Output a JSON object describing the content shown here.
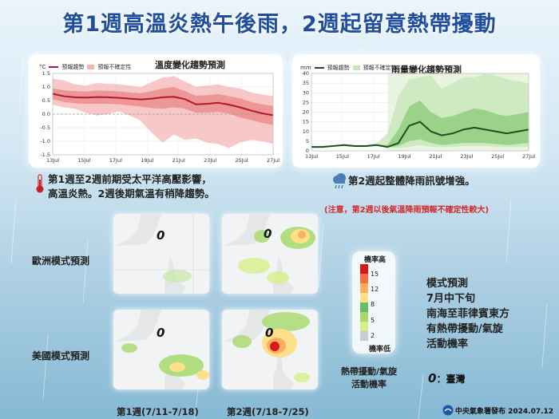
{
  "title": "第1週高溫炎熱午後雨，2週起留意熱帶擾動",
  "temp_chart": {
    "title": "溫度變化趨勢預測",
    "unit": "°C",
    "legend_trend": "預報趨勢",
    "legend_uncertainty": "預報不確定性",
    "line_color": "#b3172b",
    "band_color": "#f5b5b5",
    "chart_data": {
      "type": "area",
      "x_labels": [
        "13Jul",
        "15Jul",
        "17Jul",
        "19Jul",
        "21Jul",
        "23Jul",
        "25Jul",
        "27Jul"
      ],
      "y_ticks": [
        "1.5",
        "1.0",
        "0.5",
        "0.0",
        "-0.5",
        "-1.0",
        "-1.5"
      ],
      "ylim": [
        -1.5,
        1.5
      ],
      "grid": true,
      "trend": [
        0.75,
        0.66,
        0.62,
        0.61,
        0.63,
        0.62,
        0.6,
        0.57,
        0.54,
        0.57,
        0.62,
        0.64,
        0.55,
        0.36,
        0.38,
        0.42,
        0.35,
        0.25,
        0.13,
        0.03,
        -0.04
      ],
      "upper": [
        1.3,
        1.25,
        1.1,
        1.05,
        1.15,
        1.12,
        1.1,
        1.05,
        1.0,
        1.18,
        1.35,
        1.4,
        1.2,
        1.02,
        1.05,
        1.1,
        1.0,
        0.95,
        0.8,
        0.72,
        0.66
      ],
      "lower": [
        0.35,
        0.25,
        0.2,
        0.05,
        -0.05,
        0.0,
        0.1,
        -0.05,
        -0.25,
        -0.7,
        -1.05,
        -0.75,
        -0.95,
        -0.9,
        -1.05,
        -1.1,
        -1.25,
        -1.05,
        -0.95,
        -1.0,
        -1.1
      ],
      "inner_upper": [
        0.95,
        0.88,
        0.85,
        0.83,
        0.87,
        0.86,
        0.84,
        0.8,
        0.77,
        0.85,
        0.95,
        1.0,
        0.85,
        0.68,
        0.7,
        0.74,
        0.66,
        0.58,
        0.45,
        0.36,
        0.3
      ],
      "inner_lower": [
        0.55,
        0.45,
        0.4,
        0.38,
        0.38,
        0.38,
        0.36,
        0.32,
        0.28,
        0.22,
        0.2,
        0.25,
        0.2,
        0.05,
        0.05,
        0.08,
        0.02,
        -0.12,
        -0.22,
        -0.32,
        -0.4
      ]
    }
  },
  "rain_chart": {
    "title": "雨量變化趨勢預測",
    "unit": "mm",
    "legend_trend": "預報趨勢",
    "legend_uncertainty": "預報不確定性",
    "line_color": "#1f4d1f",
    "band_color": "#c5e6b8",
    "chart_data": {
      "type": "area",
      "x_labels": [
        "13Jul",
        "15Jul",
        "17Jul",
        "19Jul",
        "21Jul",
        "23Jul",
        "25Jul",
        "27Jul"
      ],
      "y_ticks": [
        "40",
        "35",
        "30",
        "25",
        "20",
        "15",
        "10",
        "5",
        "0"
      ],
      "ylim": [
        0,
        40
      ],
      "grid": true,
      "trend": [
        2,
        2,
        2.5,
        3,
        2.5,
        2.5,
        3,
        2,
        4,
        13,
        15,
        10,
        8,
        9,
        11,
        12,
        11,
        10,
        9,
        10,
        11
      ],
      "upper": [
        2,
        2.5,
        3,
        3.5,
        3,
        3,
        4,
        9,
        28,
        37,
        38,
        39,
        32,
        35,
        38,
        38,
        40,
        39,
        37,
        36,
        35
      ],
      "lower": [
        1.5,
        1.5,
        2,
        2.5,
        2,
        2,
        2.5,
        1.5,
        1.5,
        2,
        3,
        2,
        2,
        2,
        2.5,
        2.5,
        2.5,
        2,
        2,
        2,
        2
      ],
      "inner_upper": [
        2,
        2,
        2.5,
        3,
        2.5,
        2.5,
        3,
        3,
        11,
        23,
        26,
        20,
        17,
        18,
        20,
        22,
        21,
        19,
        18,
        19,
        20
      ],
      "inner_lower": [
        1.8,
        1.8,
        2.2,
        2.8,
        2.2,
        2.2,
        2.8,
        1.8,
        2.5,
        5,
        6,
        4,
        3,
        3.5,
        4,
        4,
        4,
        3.5,
        3,
        3.5,
        4
      ]
    }
  },
  "temp_note": "第1週至2週前期受太平洋高壓影響，\n高溫炎熱。2週後期氣溫有稍降趨勢。",
  "rain_note": "第2週起整體降雨訊號增強。",
  "warning": "(注意，第2週以後氣溫降雨預報不確定性較大)",
  "maps": {
    "row_ecmwf": "歐洲模式預測",
    "row_ncep": "美國模式預測",
    "col_week1": "第1週(7/11-7/18)",
    "col_week2": "第2週(7/18-7/25)",
    "zero_marker": "0"
  },
  "scale": {
    "high": "機率高",
    "low": "機率低",
    "ticks": [
      "15",
      "12",
      "8",
      "5",
      "2"
    ],
    "colors": [
      "#d7191c",
      "#f46d43",
      "#fdae61",
      "#fee08b",
      "#66bd63",
      "#a6d96a",
      "#d9ef8b",
      "#cccccc"
    ]
  },
  "legend_caption": "熱帶擾動/氣旋\n活動機率",
  "taiwan_legend": "：臺灣",
  "right_text": "模式預測\n7月中下旬\n南海至菲律賓東方\n有熱帶擾動/氣旋\n活動機率",
  "footer": "中央氣象署發布 2024.07.12"
}
